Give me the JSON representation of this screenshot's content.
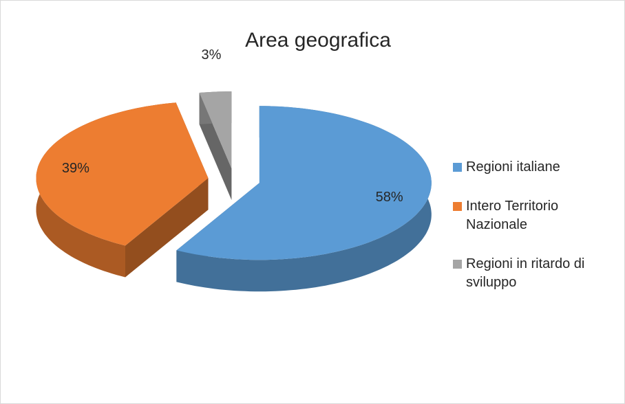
{
  "chart_data": {
    "type": "pie3d",
    "title": "Area geografica",
    "categories": [
      "Regioni italiane",
      "Intero Territorio Nazionale",
      "Regioni in ritardo di sviluppo"
    ],
    "values": [
      58,
      39,
      3
    ],
    "value_labels": [
      "58%",
      "39%",
      "3%"
    ],
    "colors": [
      "#5b9bd5",
      "#ed7d31",
      "#a5a5a5"
    ],
    "legend": "right"
  }
}
